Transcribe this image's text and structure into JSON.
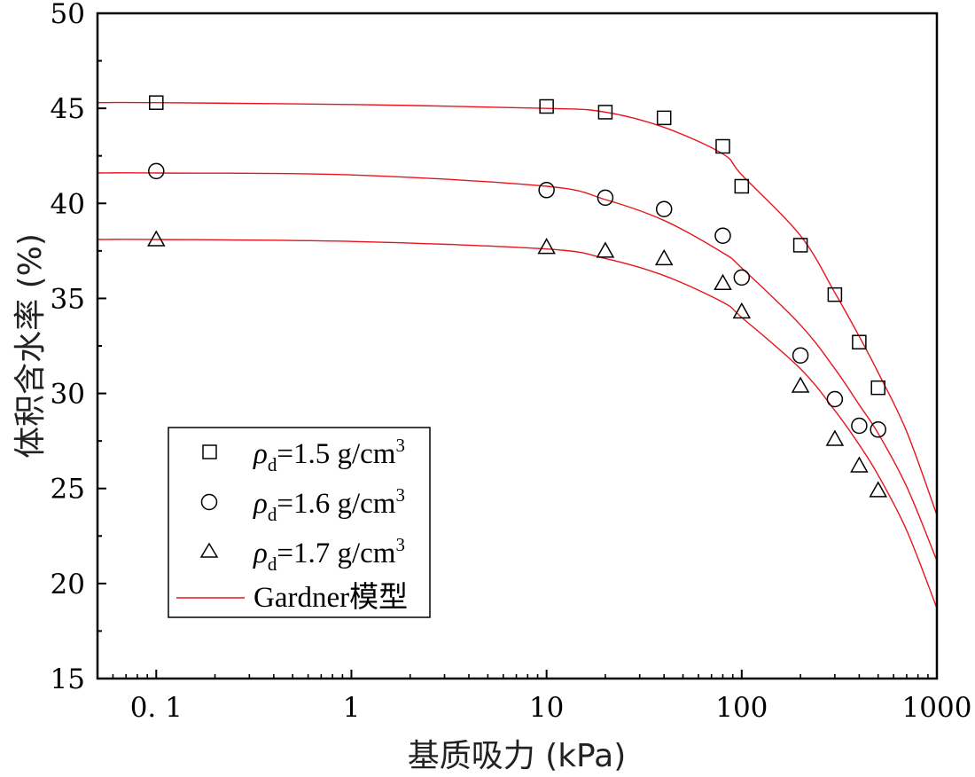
{
  "chart_data": {
    "type": "scatter",
    "title": "",
    "xlabel": "基质吸力 (kPa)",
    "ylabel": "体积含水率 (%)",
    "xscale": "log",
    "xlim": [
      0.05,
      1000
    ],
    "ylim": [
      15,
      50
    ],
    "xticks": [
      0.1,
      1,
      10,
      100,
      1000
    ],
    "xtick_labels": [
      "0. 1",
      "1",
      "10",
      "100",
      "1000"
    ],
    "yticks": [
      15,
      20,
      25,
      30,
      35,
      40,
      45,
      50
    ],
    "ytick_labels": [
      "15",
      "20",
      "25",
      "30",
      "35",
      "40",
      "45",
      "50"
    ],
    "grid": false,
    "legend_position": "lower-left",
    "colors": {
      "fit": "#e8141c",
      "axis": "#000000",
      "marker": "#000000"
    },
    "series": [
      {
        "name": "ρd=1.5 g/cm3",
        "label_rho": "ρ",
        "label_sub": "d",
        "label_rest": "=1.5 g/cm",
        "label_sup": "3",
        "marker": "square",
        "x": [
          0.1,
          10,
          20,
          40,
          80,
          100,
          200,
          300,
          400,
          500
        ],
        "y": [
          45.3,
          45.1,
          44.8,
          44.5,
          43.0,
          40.9,
          37.8,
          35.2,
          32.7,
          30.3
        ]
      },
      {
        "name": "ρd=1.6 g/cm3",
        "label_rho": "ρ",
        "label_sub": "d",
        "label_rest": "=1.6 g/cm",
        "label_sup": "3",
        "marker": "circle",
        "x": [
          0.1,
          10,
          20,
          40,
          80,
          100,
          200,
          300,
          400,
          500
        ],
        "y": [
          41.7,
          40.7,
          40.3,
          39.7,
          38.3,
          36.1,
          32.0,
          29.7,
          28.3,
          28.1
        ]
      },
      {
        "name": "ρd=1.7 g/cm3",
        "label_rho": "ρ",
        "label_sub": "d",
        "label_rest": "=1.7 g/cm",
        "label_sup": "3",
        "marker": "triangle",
        "x": [
          0.1,
          10,
          20,
          40,
          80,
          100,
          200,
          300,
          400,
          500
        ],
        "y": [
          38.1,
          37.7,
          37.5,
          37.1,
          35.8,
          34.3,
          30.4,
          27.6,
          26.2,
          24.9
        ]
      }
    ],
    "fits": [
      {
        "name": "Gardner模型 (ρd=1.5)",
        "x": [
          0.05,
          0.1,
          1,
          10,
          20,
          40,
          80,
          100,
          200,
          300,
          400,
          500,
          700,
          1000
        ],
        "y": [
          45.3,
          45.3,
          45.2,
          45.0,
          44.8,
          44.0,
          42.6,
          41.5,
          38.3,
          35.3,
          33.0,
          31.1,
          28.0,
          23.6
        ]
      },
      {
        "name": "Gardner模型 (ρd=1.6)",
        "x": [
          0.05,
          0.1,
          1,
          10,
          20,
          40,
          80,
          100,
          200,
          300,
          400,
          500,
          700,
          1000
        ],
        "y": [
          41.6,
          41.6,
          41.5,
          40.9,
          40.2,
          39.1,
          37.4,
          36.6,
          33.6,
          31.3,
          29.4,
          27.9,
          25.1,
          21.2
        ]
      },
      {
        "name": "Gardner模型 (ρd=1.7)",
        "x": [
          0.05,
          0.1,
          1,
          10,
          20,
          40,
          80,
          100,
          200,
          300,
          400,
          500,
          700,
          1000
        ],
        "y": [
          38.1,
          38.1,
          38.0,
          37.6,
          37.1,
          36.2,
          34.8,
          34.0,
          31.3,
          29.1,
          27.3,
          25.7,
          22.8,
          18.7
        ]
      }
    ],
    "legend": {
      "fit_label": "Gardner模型"
    }
  }
}
